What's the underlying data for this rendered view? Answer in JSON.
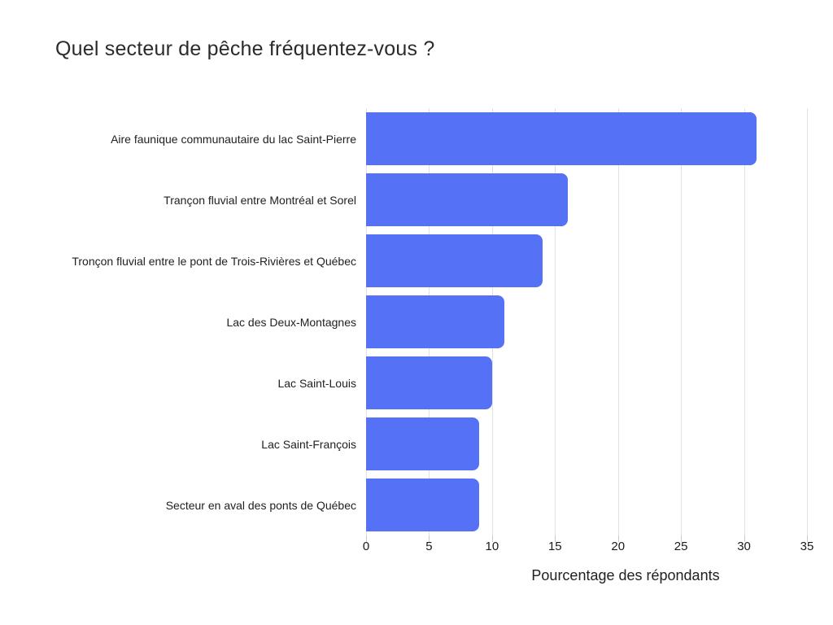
{
  "chart_data": {
    "type": "bar",
    "orientation": "horizontal",
    "title": "Quel secteur de pêche fréquentez-vous ?",
    "categories": [
      "Aire faunique communautaire du lac Saint-Pierre",
      "Trançon fluvial entre Montréal et Sorel",
      "Tronçon fluvial entre le pont de Trois-Rivières et Québec",
      "Lac des Deux-Montagnes",
      "Lac Saint-Louis",
      "Lac Saint-François",
      "Secteur en aval des ponts de Québec"
    ],
    "values": [
      31,
      16,
      14,
      11,
      10,
      9,
      9
    ],
    "xlabel": "Pourcentage des répondants",
    "ylabel": "",
    "xlim": [
      0,
      35
    ],
    "xticks": [
      0,
      5,
      10,
      15,
      20,
      25,
      30,
      35
    ],
    "grid": "vertical-gridlines-on",
    "legend": "none",
    "bar_color": "#5571f6",
    "gridline_color": "#e2e2e2",
    "tick_color": "#c9c9c9",
    "text_color": "#212121",
    "background_color": "#ffffff"
  }
}
